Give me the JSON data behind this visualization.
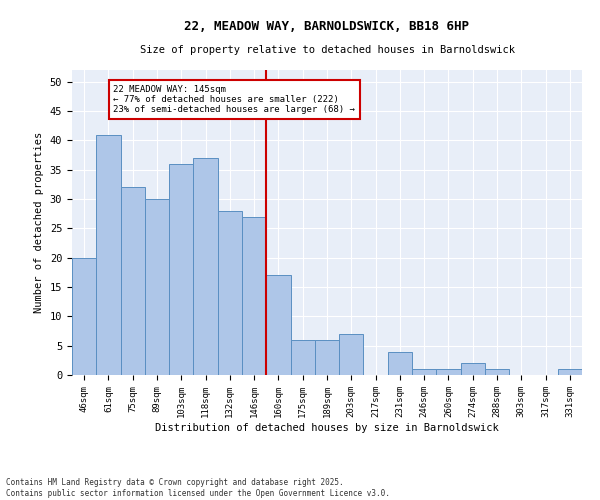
{
  "title1": "22, MEADOW WAY, BARNOLDSWICK, BB18 6HP",
  "title2": "Size of property relative to detached houses in Barnoldswick",
  "xlabel": "Distribution of detached houses by size in Barnoldswick",
  "ylabel": "Number of detached properties",
  "categories": [
    "46sqm",
    "61sqm",
    "75sqm",
    "89sqm",
    "103sqm",
    "118sqm",
    "132sqm",
    "146sqm",
    "160sqm",
    "175sqm",
    "189sqm",
    "203sqm",
    "217sqm",
    "231sqm",
    "246sqm",
    "260sqm",
    "274sqm",
    "288sqm",
    "303sqm",
    "317sqm",
    "331sqm"
  ],
  "values": [
    20,
    41,
    32,
    30,
    36,
    37,
    28,
    27,
    17,
    6,
    6,
    7,
    0,
    4,
    1,
    1,
    2,
    1,
    0,
    0,
    1
  ],
  "bar_color": "#aec6e8",
  "bar_edge_color": "#5a8fc2",
  "marker_index": 7,
  "marker_color": "#cc0000",
  "annotation_title": "22 MEADOW WAY: 145sqm",
  "annotation_line1": "← 77% of detached houses are smaller (222)",
  "annotation_line2": "23% of semi-detached houses are larger (68) →",
  "annotation_box_color": "#cc0000",
  "ylim": [
    0,
    52
  ],
  "yticks": [
    0,
    5,
    10,
    15,
    20,
    25,
    30,
    35,
    40,
    45,
    50
  ],
  "background_color": "#e8eef8",
  "footer1": "Contains HM Land Registry data © Crown copyright and database right 2025.",
  "footer2": "Contains public sector information licensed under the Open Government Licence v3.0."
}
